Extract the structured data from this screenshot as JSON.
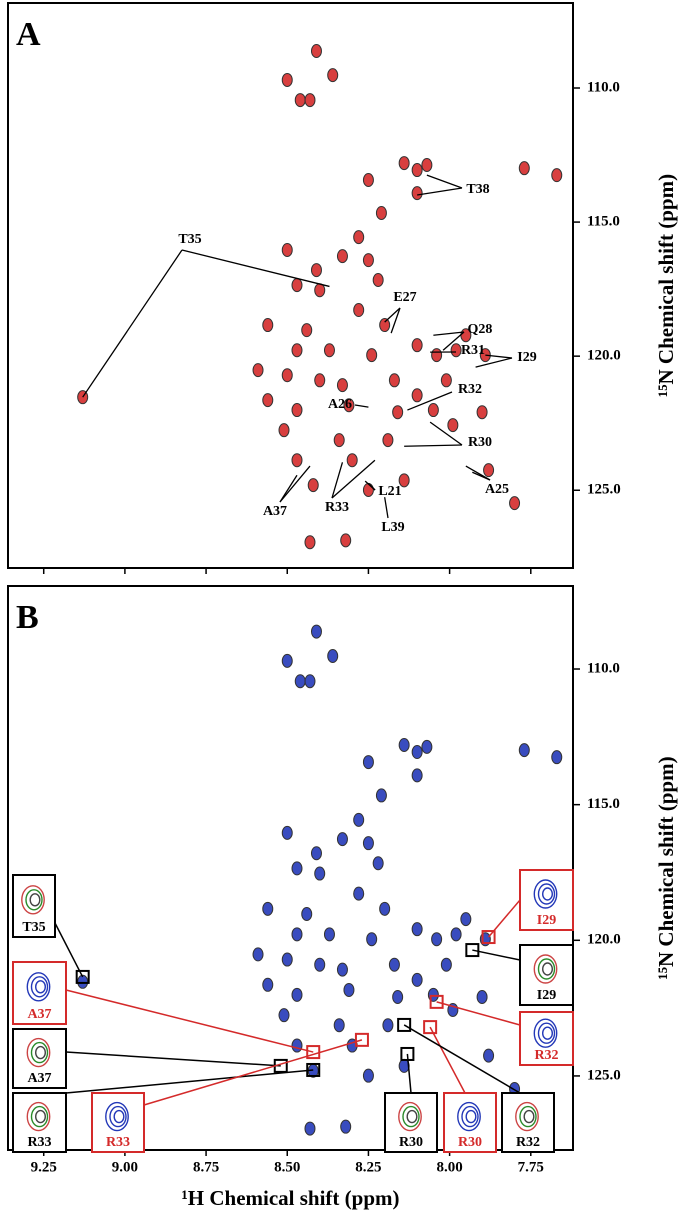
{
  "chart_data": [
    {
      "type": "scatter",
      "panel_label": "A",
      "y_title": "¹⁵N Chemical shift (ppm)",
      "color": "#d42a2a",
      "x": [
        8.41,
        8.36,
        8.5,
        8.46,
        8.43,
        8.25,
        8.14,
        8.1,
        8.07,
        8.1,
        8.21,
        8.28,
        8.5,
        8.33,
        8.25,
        8.41,
        8.47,
        8.4,
        8.22,
        8.56,
        8.44,
        8.28,
        8.2,
        8.47,
        8.37,
        8.24,
        8.1,
        8.04,
        8.59,
        8.5,
        8.4,
        8.33,
        8.17,
        8.1,
        8.01,
        8.56,
        8.47,
        8.31,
        8.16,
        8.05,
        8.51,
        8.34,
        8.19,
        7.99,
        8.47,
        8.3,
        8.14,
        8.42,
        8.25,
        7.88,
        7.8,
        8.43,
        8.32,
        9.13,
        7.77,
        7.67,
        7.9,
        7.98,
        7.89,
        7.95
      ],
      "values": [
        108.62,
        109.52,
        109.7,
        110.45,
        110.45,
        113.43,
        112.8,
        113.06,
        112.87,
        113.92,
        114.66,
        115.56,
        116.04,
        116.27,
        116.42,
        116.79,
        117.35,
        117.54,
        117.16,
        118.84,
        119.03,
        118.28,
        118.84,
        119.78,
        119.78,
        119.96,
        119.59,
        119.96,
        120.52,
        120.71,
        120.9,
        121.08,
        120.9,
        121.46,
        120.9,
        121.64,
        122.01,
        121.83,
        122.09,
        122.01,
        122.76,
        123.13,
        123.13,
        122.57,
        123.88,
        123.88,
        124.63,
        124.81,
        124.99,
        124.25,
        125.48,
        126.94,
        126.87,
        121.53,
        112.99,
        113.25,
        122.09,
        119.78,
        119.96,
        119.22
      ],
      "xlim": [
        9.36,
        7.62
      ],
      "ylim": [
        106.83,
        127.9
      ],
      "xticks": [
        9.25,
        9,
        8.75,
        8.5,
        8.25,
        8,
        7.75
      ],
      "yticks": [
        {
          "value": 110,
          "label": "110.0"
        },
        {
          "value": 115,
          "label": "115.0"
        },
        {
          "value": 120,
          "label": "120.0"
        },
        {
          "value": 125,
          "label": "125.0"
        }
      ],
      "annotations": [
        {
          "text": "T38",
          "x": [
            8.07,
            8.1
          ],
          "y": [
            113.25,
            113.99
          ]
        },
        {
          "text": "T35",
          "x": [
            8.37,
            9.13
          ],
          "y": [
            117.4,
            121.53
          ]
        },
        {
          "text": "E27",
          "x": [
            8.2,
            8.18
          ],
          "y": [
            118.73,
            119.14
          ]
        },
        {
          "text": "Q28",
          "x": [
            8.05,
            8.02
          ],
          "y": [
            119.22,
            119.78
          ]
        },
        {
          "text": "R31",
          "x": [
            8.06
          ],
          "y": [
            119.85
          ]
        },
        {
          "text": "I29",
          "x": [
            7.89,
            7.92
          ],
          "y": [
            119.96,
            120.41
          ]
        },
        {
          "text": "R32",
          "x": [
            8.13
          ],
          "y": [
            122.01
          ]
        },
        {
          "text": "A26",
          "x": [
            8.25
          ],
          "y": [
            121.9
          ]
        },
        {
          "text": "R30",
          "x": [
            8.06,
            8.14
          ],
          "y": [
            122.46,
            123.36
          ]
        },
        {
          "text": "A25",
          "x": [
            7.95,
            7.93
          ],
          "y": [
            124.1,
            124.33
          ]
        },
        {
          "text": "L21",
          "x": [
            8.26,
            8.25
          ],
          "y": [
            124.66,
            124.74
          ]
        },
        {
          "text": "L39",
          "x": [
            8.2
          ],
          "y": [
            125.26
          ]
        },
        {
          "text": "R33",
          "x": [
            8.23,
            8.33
          ],
          "y": [
            123.88,
            123.96
          ]
        },
        {
          "text": "A37",
          "x": [
            8.43,
            8.47
          ],
          "y": [
            124.1,
            124.44
          ]
        }
      ]
    },
    {
      "type": "scatter",
      "panel_label": "B",
      "x_title": "¹H Chemical shift (ppm)",
      "y_title": "¹⁵N Chemical shift (ppm)",
      "color": "#2338b8",
      "x": [
        8.41,
        8.36,
        8.5,
        8.46,
        8.43,
        8.25,
        8.14,
        8.1,
        8.07,
        8.1,
        8.21,
        8.28,
        8.5,
        8.33,
        8.25,
        8.41,
        8.47,
        8.4,
        8.22,
        8.56,
        8.44,
        8.28,
        8.2,
        8.47,
        8.37,
        8.24,
        8.1,
        8.04,
        8.59,
        8.5,
        8.4,
        8.33,
        8.17,
        8.1,
        8.01,
        8.56,
        8.47,
        8.31,
        8.16,
        8.05,
        8.51,
        8.34,
        8.19,
        7.99,
        8.47,
        8.3,
        8.14,
        8.42,
        8.25,
        7.88,
        7.8,
        8.43,
        8.32,
        9.13,
        7.77,
        7.67,
        7.9,
        7.98,
        7.89,
        7.95
      ],
      "values": [
        108.62,
        109.52,
        109.7,
        110.45,
        110.45,
        113.43,
        112.8,
        113.06,
        112.87,
        113.92,
        114.66,
        115.56,
        116.04,
        116.27,
        116.42,
        116.79,
        117.35,
        117.54,
        117.16,
        118.84,
        119.03,
        118.28,
        118.84,
        119.78,
        119.78,
        119.96,
        119.59,
        119.96,
        120.52,
        120.71,
        120.9,
        121.08,
        120.9,
        121.46,
        120.9,
        121.64,
        122.01,
        121.83,
        122.09,
        122.01,
        122.76,
        123.13,
        123.13,
        122.57,
        123.88,
        123.88,
        124.63,
        124.81,
        124.99,
        124.25,
        125.48,
        126.94,
        126.87,
        121.53,
        112.99,
        113.25,
        122.09,
        119.78,
        119.96,
        119.22
      ],
      "xlim": [
        9.36,
        7.62
      ],
      "ylim": [
        106.94,
        127.73
      ],
      "xticks": [
        9.25,
        {
          "value": 9,
          "label": "9.00"
        },
        8.75,
        {
          "value": 8.5,
          "label": "8.50"
        },
        8.25,
        {
          "value": 8,
          "label": "8.00"
        },
        7.75
      ],
      "yticks": [
        {
          "value": 110,
          "label": "110.0"
        },
        {
          "value": 115,
          "label": "115.0"
        },
        {
          "value": 120,
          "label": "120.0"
        },
        {
          "value": 125,
          "label": "125.0"
        }
      ],
      "insets": [
        {
          "text": "T35",
          "color": "#000000",
          "x": 9.13,
          "y": 121.35
        },
        {
          "text": "A37",
          "color": "#d42a2a",
          "x": 8.42,
          "y": 124.12
        },
        {
          "text": "A37",
          "color": "#000000",
          "x": 8.52,
          "y": 124.63
        },
        {
          "text": "R33",
          "color": "#000000",
          "x": 8.42,
          "y": 124.78
        },
        {
          "text": "R33",
          "color": "#d42a2a",
          "x": 8.27,
          "y": 123.67
        },
        {
          "text": "R30",
          "color": "#000000",
          "x": 8.13,
          "y": 124.19
        },
        {
          "text": "R30",
          "color": "#d42a2a",
          "x": 8.06,
          "y": 123.2
        },
        {
          "text": "R32",
          "color": "#000000",
          "x": 8.14,
          "y": 123.12
        },
        {
          "text": "R32",
          "color": "#d42a2a",
          "x": 8.04,
          "y": 122.27
        },
        {
          "text": "I29",
          "color": "#000000",
          "x": 7.93,
          "y": 120.36
        },
        {
          "text": "I29",
          "color": "#d42a2a",
          "x": 7.88,
          "y": 119.88
        }
      ]
    }
  ]
}
